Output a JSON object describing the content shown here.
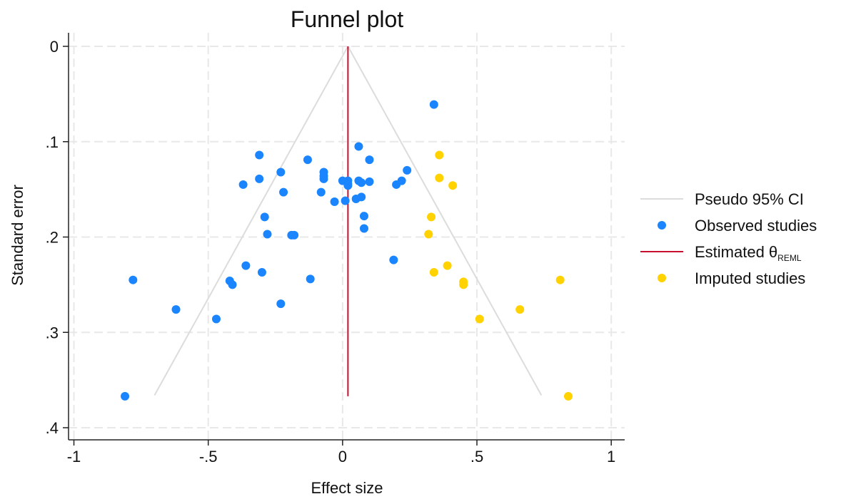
{
  "chart_data": {
    "type": "scatter",
    "title": "Funnel plot",
    "xlabel": "Effect size",
    "ylabel": "Standard error",
    "xlim": [
      -1.02,
      1.05
    ],
    "ylim": [
      0.4,
      0
    ],
    "y_reversed": true,
    "grid": true,
    "legend_position": "right",
    "x_ticks": [
      {
        "value": -1,
        "label": "-1"
      },
      {
        "value": -0.5,
        "label": "-.5"
      },
      {
        "value": 0,
        "label": "0"
      },
      {
        "value": 0.5,
        "label": ".5"
      },
      {
        "value": 1,
        "label": "1"
      }
    ],
    "y_ticks": [
      {
        "value": 0,
        "label": "0"
      },
      {
        "value": 0.1,
        "label": ".1"
      },
      {
        "value": 0.2,
        "label": ".2"
      },
      {
        "value": 0.3,
        "label": ".3"
      },
      {
        "value": 0.4,
        "label": ".4"
      }
    ],
    "estimate": {
      "x": 0.02,
      "se_range": [
        0,
        0.367
      ],
      "color": "#c8102e"
    },
    "pseudo_ci": {
      "left": [
        [
          0.02,
          0
        ],
        [
          -0.7,
          0.366
        ]
      ],
      "right": [
        [
          0.02,
          0
        ],
        [
          0.74,
          0.366
        ]
      ],
      "color": "#dcdcdc"
    },
    "colors": {
      "observed": "#1a85ff",
      "imputed": "#ffd200",
      "grid": "#e8e8e8",
      "axis": "#222222"
    },
    "legend": [
      {
        "key": "ci",
        "label": "Pseudo 95% CI",
        "marker": "line",
        "color": "#dcdcdc"
      },
      {
        "key": "observed",
        "label": "Observed studies",
        "marker": "dot",
        "color": "#1a85ff"
      },
      {
        "key": "estimate",
        "label": "Estimated θ",
        "subscript": "REML",
        "marker": "line",
        "color": "#c8102e"
      },
      {
        "key": "imputed",
        "label": "Imputed studies",
        "marker": "dot",
        "color": "#ffd200"
      }
    ],
    "series": [
      {
        "name": "Observed studies",
        "points": [
          [
            0.34,
            0.061
          ],
          [
            0.06,
            0.105
          ],
          [
            -0.31,
            0.114
          ],
          [
            0.1,
            0.119
          ],
          [
            -0.13,
            0.119
          ],
          [
            0.24,
            0.13
          ],
          [
            -0.23,
            0.132
          ],
          [
            -0.07,
            0.132
          ],
          [
            -0.07,
            0.136
          ],
          [
            -0.31,
            0.139
          ],
          [
            -0.07,
            0.139
          ],
          [
            0.0,
            0.141
          ],
          [
            0.02,
            0.141
          ],
          [
            0.06,
            0.141
          ],
          [
            0.1,
            0.142
          ],
          [
            0.22,
            0.141
          ],
          [
            0.07,
            0.143
          ],
          [
            0.02,
            0.144
          ],
          [
            0.2,
            0.145
          ],
          [
            -0.37,
            0.145
          ],
          [
            0.02,
            0.146
          ],
          [
            -0.22,
            0.153
          ],
          [
            -0.08,
            0.153
          ],
          [
            0.07,
            0.158
          ],
          [
            0.05,
            0.16
          ],
          [
            0.01,
            0.162
          ],
          [
            -0.03,
            0.163
          ],
          [
            0.08,
            0.178
          ],
          [
            -0.29,
            0.179
          ],
          [
            0.08,
            0.191
          ],
          [
            -0.28,
            0.197
          ],
          [
            -0.19,
            0.198
          ],
          [
            -0.18,
            0.198
          ],
          [
            0.19,
            0.224
          ],
          [
            -0.36,
            0.23
          ],
          [
            -0.3,
            0.237
          ],
          [
            -0.12,
            0.244
          ],
          [
            -0.78,
            0.245
          ],
          [
            -0.42,
            0.246
          ],
          [
            -0.41,
            0.25
          ],
          [
            -0.23,
            0.27
          ],
          [
            -0.62,
            0.276
          ],
          [
            -0.47,
            0.286
          ],
          [
            -0.81,
            0.367
          ]
        ]
      },
      {
        "name": "Imputed studies",
        "points": [
          [
            0.36,
            0.114
          ],
          [
            0.36,
            0.138
          ],
          [
            0.41,
            0.146
          ],
          [
            0.33,
            0.179
          ],
          [
            0.32,
            0.197
          ],
          [
            0.39,
            0.23
          ],
          [
            0.34,
            0.237
          ],
          [
            0.81,
            0.245
          ],
          [
            0.45,
            0.247
          ],
          [
            0.45,
            0.25
          ],
          [
            0.66,
            0.276
          ],
          [
            0.51,
            0.286
          ],
          [
            0.84,
            0.367
          ]
        ]
      }
    ]
  }
}
